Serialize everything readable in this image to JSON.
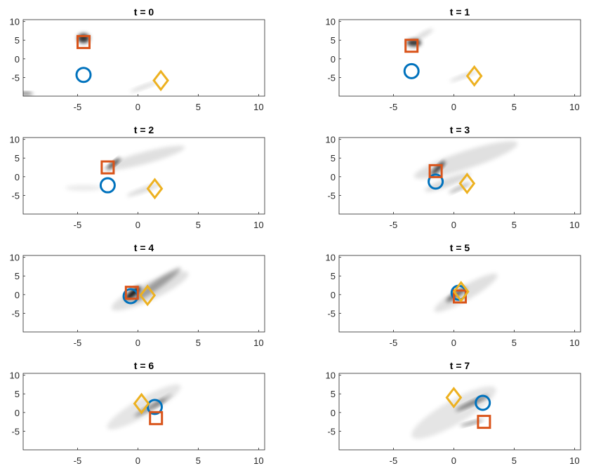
{
  "chart_data": {
    "type": "scatter",
    "layout": "4x2 small multiples",
    "shared_axes": {
      "xlim": [
        -9.5,
        10.5
      ],
      "ylim": [
        -10,
        10.5
      ],
      "xticks": [
        -5,
        0,
        5,
        10
      ],
      "yticks": [
        10,
        5,
        0,
        -5
      ],
      "grid": false,
      "background": "grayscale density shading"
    },
    "colors": {
      "circle": "#0072BD",
      "square": "#D95319",
      "diamond": "#EDB120"
    },
    "panels": [
      {
        "title": "t = 0",
        "circle": [
          -4.5,
          -4.3
        ],
        "square": [
          -4.5,
          4.5
        ],
        "diamond": [
          1.9,
          -5.8
        ],
        "density": [
          {
            "x": -4.5,
            "y": 5.5,
            "rx": 0.5,
            "ry": 0.8,
            "angle": 0,
            "o": 0.8
          },
          {
            "x": -9.3,
            "y": -9.3,
            "rx": 0.6,
            "ry": 0.25,
            "angle": 0,
            "o": 0.6
          },
          {
            "x": 0.5,
            "y": -7.5,
            "rx": 1.2,
            "ry": 0.3,
            "angle": 20,
            "o": 0.15
          }
        ]
      },
      {
        "title": "t = 1",
        "circle": [
          -3.5,
          -3.3
        ],
        "square": [
          -3.5,
          3.5
        ],
        "diamond": [
          1.7,
          -4.6
        ],
        "density": [
          {
            "x": -3.3,
            "y": 4.3,
            "rx": 0.6,
            "ry": 0.6,
            "angle": 0,
            "o": 0.8
          },
          {
            "x": -2.5,
            "y": 6.5,
            "rx": 0.9,
            "ry": 0.4,
            "angle": 30,
            "o": 0.15
          },
          {
            "x": 0.8,
            "y": -4.7,
            "rx": 1.2,
            "ry": 0.3,
            "angle": 20,
            "o": 0.15
          }
        ]
      },
      {
        "title": "t = 2",
        "circle": [
          -2.5,
          -2.3
        ],
        "square": [
          -2.5,
          2.5
        ],
        "diamond": [
          1.4,
          -3.2
        ],
        "density": [
          {
            "x": -2.0,
            "y": 3.5,
            "rx": 0.7,
            "ry": 0.3,
            "angle": 40,
            "o": 0.8
          },
          {
            "x": 0.5,
            "y": 5.0,
            "rx": 3.5,
            "ry": 1.0,
            "angle": 15,
            "o": 0.12
          },
          {
            "x": 0.5,
            "y": -3.5,
            "rx": 1.5,
            "ry": 0.4,
            "angle": 20,
            "o": 0.15
          },
          {
            "x": -4.5,
            "y": -3.0,
            "rx": 1.5,
            "ry": 0.5,
            "angle": 0,
            "o": 0.08
          }
        ]
      },
      {
        "title": "t = 3",
        "circle": [
          -1.5,
          -1.3
        ],
        "square": [
          -1.5,
          1.5
        ],
        "diamond": [
          1.1,
          -1.8
        ],
        "density": [
          {
            "x": -1.3,
            "y": 2.3,
            "rx": 0.8,
            "ry": 0.35,
            "angle": 45,
            "o": 0.85
          },
          {
            "x": 1.0,
            "y": 4.5,
            "rx": 4.5,
            "ry": 1.5,
            "angle": 18,
            "o": 0.12
          },
          {
            "x": -0.5,
            "y": -1.5,
            "rx": 2.0,
            "ry": 0.7,
            "angle": 20,
            "o": 0.15
          },
          {
            "x": 0.5,
            "y": -3.0,
            "rx": 1.0,
            "ry": 0.3,
            "angle": 25,
            "o": 0.3
          }
        ]
      },
      {
        "title": "t = 4",
        "circle": [
          -0.6,
          -0.4
        ],
        "square": [
          -0.5,
          0.5
        ],
        "diamond": [
          0.8,
          -0.2
        ],
        "density": [
          {
            "x": -0.4,
            "y": 0.4,
            "rx": 0.8,
            "ry": 0.5,
            "angle": 40,
            "o": 0.95
          },
          {
            "x": 1.5,
            "y": 2.5,
            "rx": 2.5,
            "ry": 0.7,
            "angle": 35,
            "o": 0.3
          },
          {
            "x": 1.0,
            "y": 1.0,
            "rx": 3.5,
            "ry": 1.5,
            "angle": 25,
            "o": 0.12
          }
        ]
      },
      {
        "title": "t = 5",
        "circle": [
          0.4,
          0.5
        ],
        "square": [
          0.5,
          -0.5
        ],
        "diamond": [
          0.6,
          0.8
        ],
        "density": [
          {
            "x": 0.2,
            "y": 0.0,
            "rx": 1.0,
            "ry": 0.4,
            "angle": 35,
            "o": 0.6
          },
          {
            "x": 1.0,
            "y": 0.5,
            "rx": 3.0,
            "ry": 1.2,
            "angle": 30,
            "o": 0.12
          }
        ]
      },
      {
        "title": "t = 6",
        "circle": [
          1.4,
          1.5
        ],
        "square": [
          1.5,
          -1.5
        ],
        "diamond": [
          0.3,
          2.4
        ],
        "density": [
          {
            "x": 1.0,
            "y": 1.3,
            "rx": 1.5,
            "ry": 0.35,
            "angle": 30,
            "o": 0.4
          },
          {
            "x": 0.5,
            "y": 1.5,
            "rx": 3.5,
            "ry": 1.5,
            "angle": 30,
            "o": 0.1
          },
          {
            "x": 2.0,
            "y": 3.0,
            "rx": 1.0,
            "ry": 0.3,
            "angle": 35,
            "o": 0.25
          }
        ]
      },
      {
        "title": "t = 7",
        "circle": [
          2.4,
          2.6
        ],
        "square": [
          2.5,
          -2.5
        ],
        "diamond": [
          0.0,
          4.0
        ],
        "density": [
          {
            "x": 1.5,
            "y": 2.5,
            "rx": 1.5,
            "ry": 0.35,
            "angle": 25,
            "o": 0.5
          },
          {
            "x": 1.5,
            "y": -2.8,
            "rx": 1.0,
            "ry": 0.25,
            "angle": 15,
            "o": 0.45
          },
          {
            "x": 0.0,
            "y": 0.0,
            "rx": 4.0,
            "ry": 2.0,
            "angle": 30,
            "o": 0.1
          }
        ]
      }
    ]
  }
}
